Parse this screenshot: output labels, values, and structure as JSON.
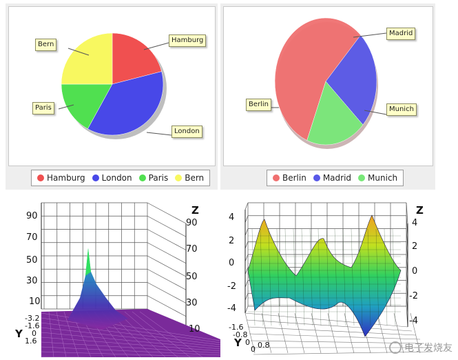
{
  "chart_data": [
    {
      "type": "pie",
      "categories": [
        "Hamburg",
        "London",
        "Paris",
        "Bern"
      ],
      "values": [
        21,
        37,
        17,
        25
      ],
      "colors": [
        "#f05050",
        "#4848e8",
        "#50e050",
        "#f8f860"
      ],
      "callout_labels": [
        "Hamburg",
        "London",
        "Paris",
        "Bern"
      ],
      "legend": "bottom"
    },
    {
      "type": "pie",
      "categories": [
        "Berlin",
        "Madrid",
        "Munich"
      ],
      "values": [
        56,
        25,
        19
      ],
      "colors": [
        "#f07070",
        "#5858e8",
        "#78e878"
      ],
      "callout_labels": [
        "Berlin",
        "Madrid",
        "Munich"
      ],
      "legend": "bottom"
    },
    {
      "type": "surface",
      "zlabel": "Z",
      "ylabel": "Y",
      "z_ticks_left": [
        "90",
        "70",
        "50",
        "30",
        "10"
      ],
      "z_ticks_right": [
        "90",
        "70",
        "50",
        "30",
        "10"
      ],
      "y_ticks": [
        "-3.2",
        "-1.6",
        "0",
        "1.6"
      ]
    },
    {
      "type": "surface",
      "zlabel": "Z",
      "ylabel": "Y",
      "z_ticks_left": [
        "4",
        "2",
        "0",
        "-2",
        "-4"
      ],
      "z_ticks_right": [
        "4",
        "2",
        "0",
        "-2",
        "-4"
      ],
      "y_ticks": [
        "-1.6",
        "-0.8",
        "0"
      ],
      "x_ticks": [
        "0",
        "0.8"
      ]
    }
  ],
  "watermark": "电子发烧友"
}
